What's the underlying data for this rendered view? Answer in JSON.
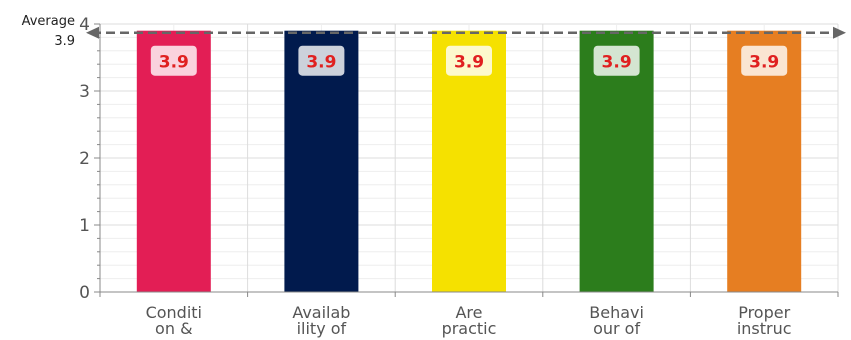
{
  "chart_data": {
    "type": "bar",
    "categories": [
      [
        "Conditi",
        "on &"
      ],
      [
        "Availab",
        "ility of"
      ],
      [
        "Are",
        "practic"
      ],
      [
        "Behavi",
        "our of"
      ],
      [
        "Proper",
        "instruc"
      ]
    ],
    "values": [
      3.9,
      3.9,
      3.9,
      3.9,
      3.9
    ],
    "data_labels": [
      "3.9",
      "3.9",
      "3.9",
      "3.9",
      "3.9"
    ],
    "colors": [
      "#e31e55",
      "#011a4d",
      "#f5e100",
      "#2c7d1c",
      "#e67e22"
    ],
    "ylim": [
      0,
      4
    ],
    "yticks": [
      0,
      1,
      2,
      3,
      4
    ],
    "grid": true,
    "average": {
      "label": "Average",
      "value_label": "3.9",
      "value": 3.9
    }
  }
}
